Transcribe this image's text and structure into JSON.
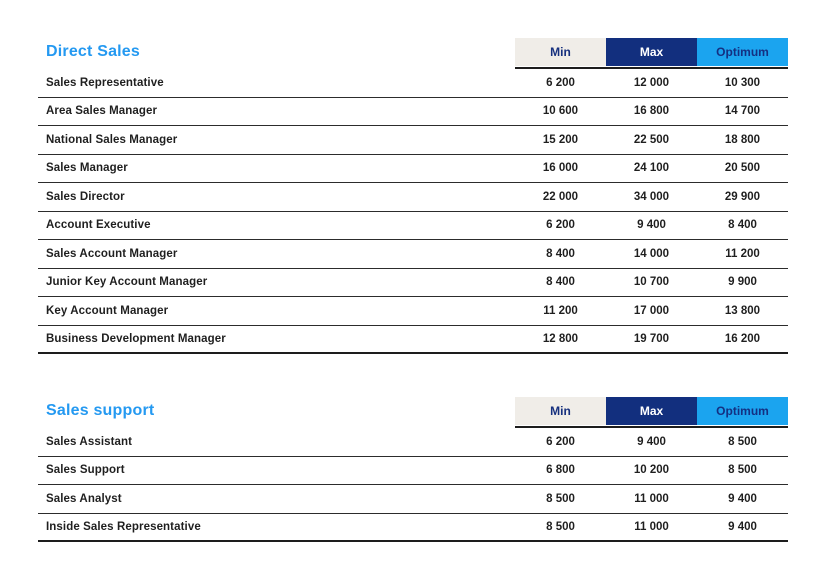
{
  "colors": {
    "title_blue": "#2499F1",
    "min_header_bg": "#F0EDE8",
    "min_header_text": "#16307E",
    "max_header_bg": "#122F7E",
    "max_header_text": "#FFFFFF",
    "optimum_header_bg": "#1BA4EF",
    "optimum_header_text": "#143082",
    "row_line": "#2C2C2C",
    "heavy_line": "#1D1D1D",
    "text": "#1F1F1F"
  },
  "tables": [
    {
      "title": "Direct Sales",
      "headers": [
        "Min",
        "Max",
        "Optimum"
      ],
      "rows": [
        {
          "label": "Sales Representative",
          "values": [
            "6 200",
            "12 000",
            "10 300"
          ]
        },
        {
          "label": "Area Sales Manager",
          "values": [
            "10 600",
            "16 800",
            "14 700"
          ]
        },
        {
          "label": "National Sales Manager",
          "values": [
            "15 200",
            "22 500",
            "18 800"
          ]
        },
        {
          "label": "Sales Manager",
          "values": [
            "16 000",
            "24 100",
            "20 500"
          ]
        },
        {
          "label": "Sales Director",
          "values": [
            "22 000",
            "34 000",
            "29 900"
          ]
        },
        {
          "label": "Account Executive",
          "values": [
            "6 200",
            "9 400",
            "8 400"
          ]
        },
        {
          "label": "Sales Account Manager",
          "values": [
            "8 400",
            "14 000",
            "11 200"
          ]
        },
        {
          "label": "Junior Key Account Manager",
          "values": [
            "8 400",
            "10 700",
            "9 900"
          ]
        },
        {
          "label": "Key Account Manager",
          "values": [
            "11 200",
            "17 000",
            "13 800"
          ]
        },
        {
          "label": "Business Development Manager",
          "values": [
            "12 800",
            "19 700",
            "16 200"
          ]
        }
      ]
    },
    {
      "title": "Sales support",
      "headers": [
        "Min",
        "Max",
        "Optimum"
      ],
      "rows": [
        {
          "label": "Sales Assistant",
          "values": [
            "6 200",
            "9 400",
            "8 500"
          ]
        },
        {
          "label": "Sales Support",
          "values": [
            "6 800",
            "10 200",
            "8 500"
          ]
        },
        {
          "label": "Sales Analyst",
          "values": [
            "8 500",
            "11 000",
            "9 400"
          ]
        },
        {
          "label": "Inside Sales Representative",
          "values": [
            "8 500",
            "11 000",
            "9 400"
          ]
        }
      ]
    }
  ]
}
